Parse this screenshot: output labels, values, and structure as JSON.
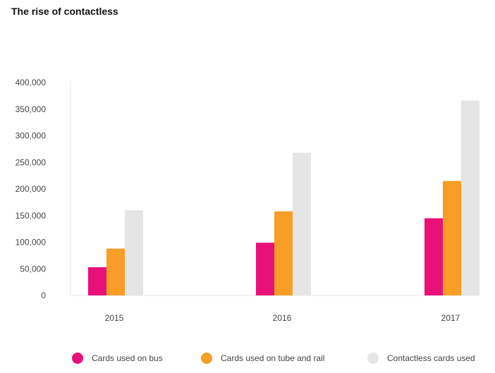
{
  "chart_data": {
    "type": "bar",
    "title": "The rise of contactless",
    "categories": [
      "2015",
      "2016",
      "2017"
    ],
    "series": [
      {
        "name": "Cards used on bus",
        "color": "#e8117a",
        "values": [
          53000,
          99000,
          145000
        ]
      },
      {
        "name": "Cards used on tube and rail",
        "color": "#f99d27",
        "values": [
          88000,
          158000,
          215000
        ]
      },
      {
        "name": "Contactless cards used",
        "color": "#e5e5e5",
        "values": [
          160000,
          268000,
          366000
        ]
      }
    ],
    "xlabel": "",
    "ylabel": "",
    "ylim": [
      0,
      400000
    ],
    "yticks": [
      "0",
      "50,000",
      "100,000",
      "150,000",
      "200,000",
      "250,000",
      "300,000",
      "350,000",
      "400,000"
    ],
    "grid": false,
    "legend_position": "bottom"
  }
}
